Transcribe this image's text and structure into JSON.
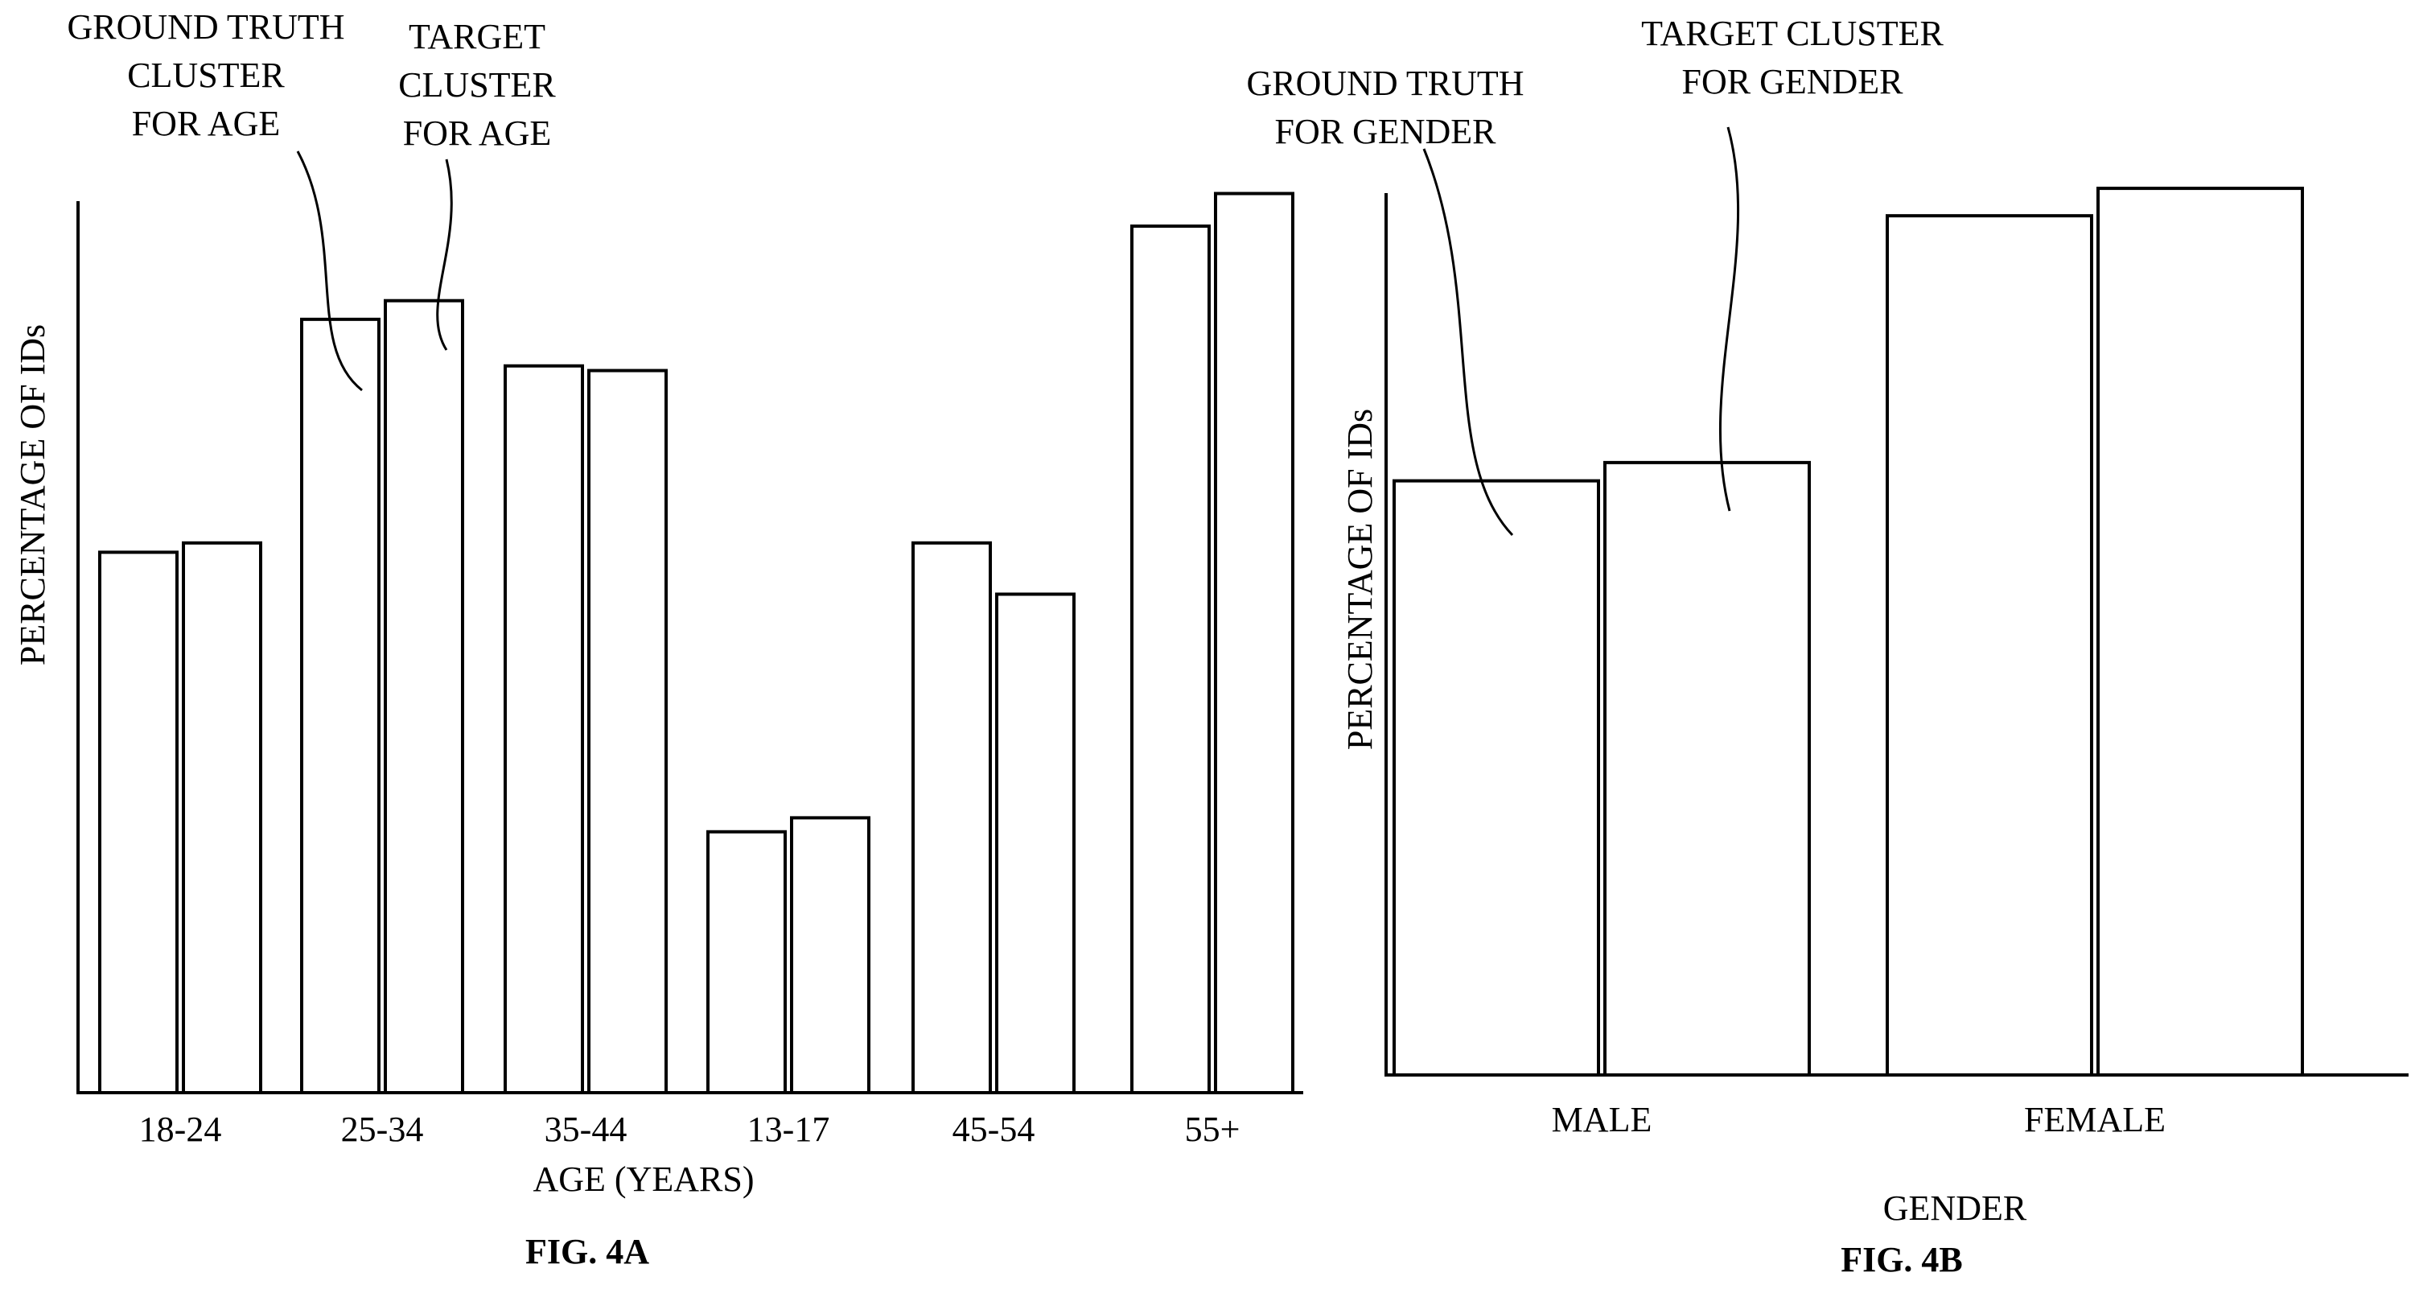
{
  "chart_data": [
    {
      "type": "bar",
      "caption": "FIG. 4A",
      "xlabel": "AGE (YEARS)",
      "ylabel": "PERCENTAGE OF IDs",
      "categories": [
        "18-24",
        "25-34",
        "35-44",
        "13-17",
        "45-54",
        "55+"
      ],
      "series": [
        {
          "name": "GROUND TRUTH CLUSTER FOR AGE",
          "values": [
            58,
            83,
            78,
            28,
            59,
            93
          ]
        },
        {
          "name": "TARGET CLUSTER FOR AGE",
          "values": [
            59,
            85,
            77.5,
            29.5,
            53.5,
            96.5
          ]
        }
      ],
      "annotations": [
        {
          "lines": [
            "GROUND TRUTH",
            "CLUSTER",
            "FOR AGE"
          ],
          "series": 0,
          "category": 1
        },
        {
          "lines": [
            "TARGET",
            "CLUSTER",
            "FOR AGE"
          ],
          "series": 1,
          "category": 1
        }
      ],
      "ylim": [
        0,
        100
      ],
      "grid": false,
      "legend": "none"
    },
    {
      "type": "bar",
      "caption": "FIG. 4B",
      "xlabel": "GENDER",
      "ylabel": "PERCENTAGE OF IDs",
      "categories": [
        "MALE",
        "FEMALE"
      ],
      "series": [
        {
          "name": "GROUND TRUTH FOR GENDER",
          "values": [
            65,
            94
          ]
        },
        {
          "name": "TARGET CLUSTER FOR GENDER",
          "values": [
            67,
            97
          ]
        }
      ],
      "annotations": [
        {
          "lines": [
            "GROUND TRUTH",
            "FOR GENDER"
          ],
          "series": 0,
          "category": 0
        },
        {
          "lines": [
            "TARGET CLUSTER",
            "FOR GENDER"
          ],
          "series": 1,
          "category": 0
        }
      ],
      "ylim": [
        0,
        100
      ],
      "grid": false,
      "legend": "none"
    }
  ]
}
